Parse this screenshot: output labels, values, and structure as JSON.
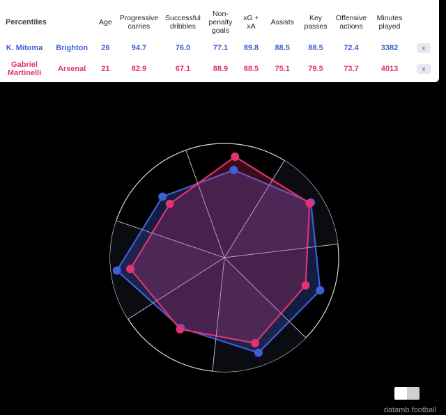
{
  "table": {
    "first_header": "Percentiles",
    "headers": [
      "Age",
      "Progressive carries",
      "Successful dribbles",
      "Non-penalty goals",
      "xG + xA",
      "Assists",
      "Key passes",
      "Offensive actions",
      "Minutes played"
    ],
    "remove_label": "x",
    "rows": [
      {
        "player": "K. Mitoma",
        "team": "Brighton",
        "color": "#3f5fd6",
        "values": [
          "26",
          "94.7",
          "76.0",
          "77.1",
          "89.8",
          "88.5",
          "88.5",
          "72.4",
          "3382"
        ]
      },
      {
        "player": "Gabriel Martinelli",
        "team": "Arsenal",
        "color": "#e0336f",
        "values": [
          "21",
          "82.9",
          "67.1",
          "88.9",
          "88.5",
          "75.1",
          "79.5",
          "73.7",
          "4013"
        ]
      }
    ]
  },
  "chart_data": {
    "type": "radar",
    "axes": [
      "Non-penalty goals",
      "xG + xA",
      "Assists",
      "Key passes",
      "Offensive actions",
      "Progressive carries",
      "Successful dribbles"
    ],
    "range": [
      0,
      100
    ],
    "series": [
      {
        "name": "K. Mitoma",
        "color": "#3f5fd6",
        "values": [
          77.1,
          89.8,
          88.5,
          88.5,
          72.4,
          94.7,
          76.0
        ]
      },
      {
        "name": "Gabriel Martinelli",
        "color": "#e0336f",
        "values": [
          88.9,
          88.5,
          75.1,
          79.5,
          73.7,
          82.9,
          67.1
        ]
      }
    ]
  },
  "watermark": "datamb.football"
}
